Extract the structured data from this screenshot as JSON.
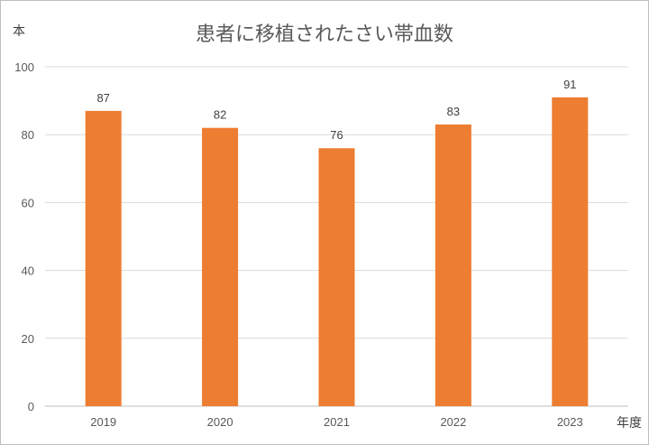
{
  "chart_data": {
    "type": "bar",
    "title": "患者に移植されたさい帯血数",
    "ylabel": "本",
    "xlabel": "年度",
    "categories": [
      "2019",
      "2020",
      "2021",
      "2022",
      "2023"
    ],
    "values": [
      87,
      82,
      76,
      83,
      91
    ],
    "ylim": [
      0,
      100
    ],
    "yticks": [
      "0",
      "20",
      "40",
      "60",
      "80",
      "100"
    ],
    "grid": true,
    "data_labels": true,
    "bar_color": "#ED7D31"
  }
}
